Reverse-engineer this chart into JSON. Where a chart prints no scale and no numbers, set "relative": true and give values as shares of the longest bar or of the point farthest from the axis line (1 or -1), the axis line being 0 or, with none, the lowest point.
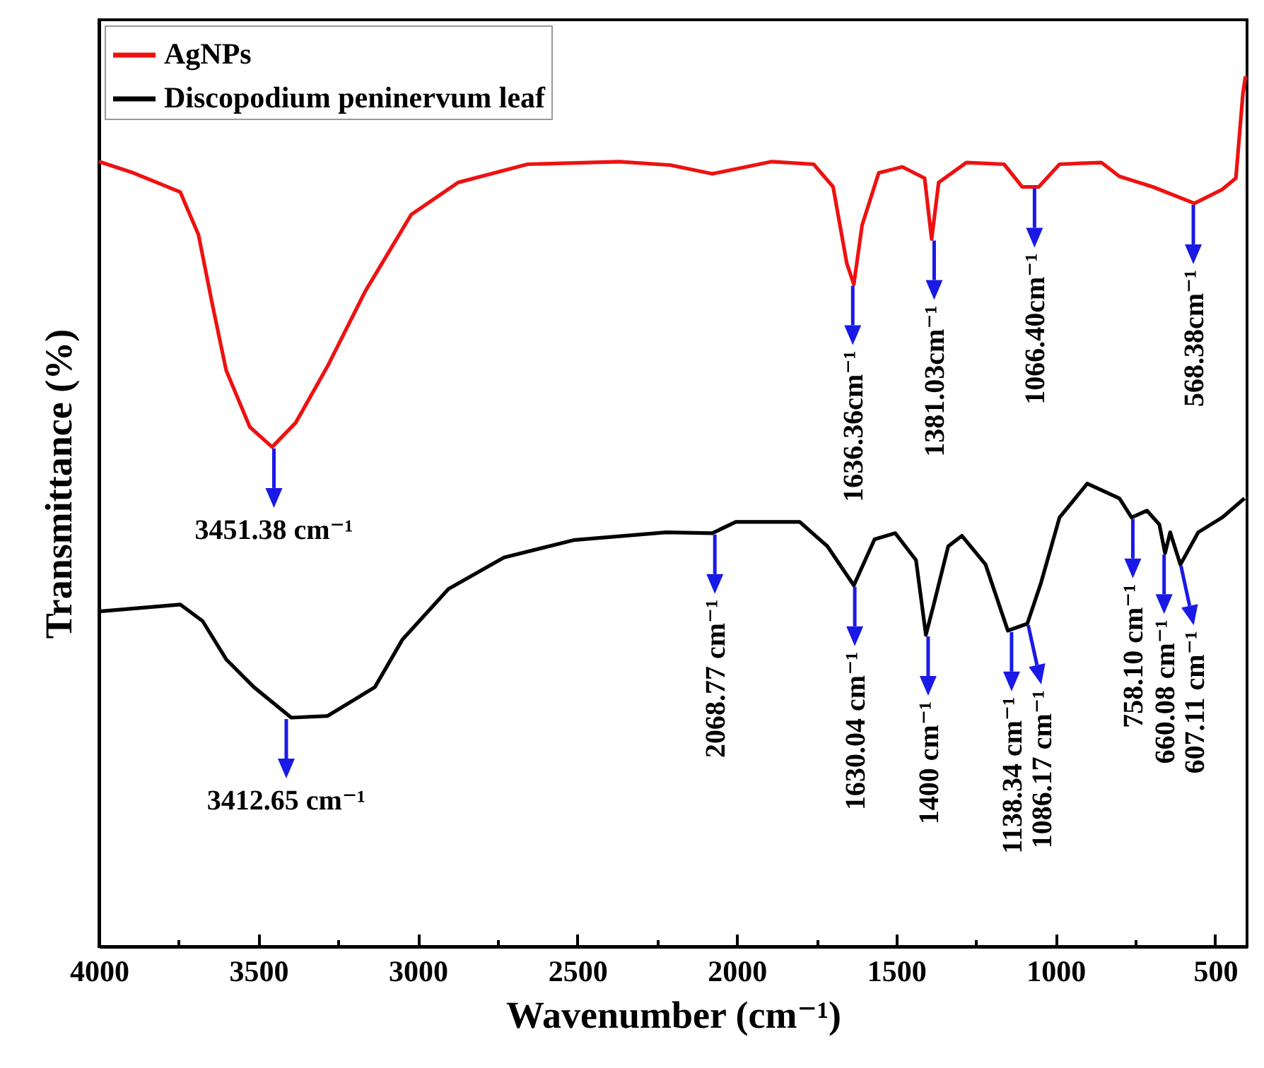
{
  "chart_data": {
    "type": "line",
    "relative": true,
    "xlabel": "Wavenumber (cm⁻¹)",
    "ylabel": "Transmittance (%)",
    "xlim": [
      4000,
      400
    ],
    "xticks": [
      4000,
      {
        "value": 3750,
        "label": null
      },
      3500,
      {
        "value": 3250,
        "label": null
      },
      3000,
      {
        "value": 2750,
        "label": null
      },
      2500,
      {
        "value": 2250,
        "label": null
      },
      2000,
      {
        "value": 1750,
        "label": null
      },
      1500,
      {
        "value": 1250,
        "label": null
      },
      1000,
      {
        "value": 750,
        "label": null
      },
      500
    ],
    "legend": "top left",
    "series": [
      {
        "name": "AgNPs",
        "color": "#ee1111",
        "x": [
          4000,
          3892,
          3745,
          3688,
          3644,
          3601,
          3527,
          3457,
          3383,
          3283,
          3165,
          3021,
          2874,
          2656,
          2369,
          2208,
          2077,
          1890,
          1759,
          1698,
          1655,
          1633,
          1607,
          1555,
          1481,
          1411,
          1389,
          1367,
          1280,
          1162,
          1105,
          1053,
          988,
          857,
          800,
          696,
          565,
          478,
          435,
          413,
          405
        ],
        "values": [
          0.902,
          0.889,
          0.867,
          0.818,
          0.737,
          0.662,
          0.597,
          0.574,
          0.602,
          0.667,
          0.753,
          0.841,
          0.878,
          0.899,
          0.902,
          0.898,
          0.888,
          0.902,
          0.899,
          0.873,
          0.785,
          0.761,
          0.829,
          0.889,
          0.896,
          0.883,
          0.813,
          0.878,
          0.901,
          0.899,
          0.873,
          0.873,
          0.899,
          0.901,
          0.885,
          0.873,
          0.854,
          0.87,
          0.883,
          0.98,
          1.0
        ]
      },
      {
        "name": "Discopodium peninervum leaf",
        "color": "#000000",
        "x": [
          4000,
          3745,
          3675,
          3601,
          3514,
          3397,
          3283,
          3135,
          3048,
          2904,
          2730,
          2512,
          2221,
          2077,
          2003,
          1803,
          1716,
          1633,
          1568,
          1503,
          1438,
          1407,
          1381,
          1337,
          1294,
          1220,
          1150,
          1089,
          1046,
          988,
          901,
          800,
          762,
          714,
          675,
          657,
          641,
          609,
          553,
          478,
          408
        ],
        "values": [
          0.385,
          0.393,
          0.374,
          0.33,
          0.298,
          0.263,
          0.265,
          0.298,
          0.353,
          0.411,
          0.447,
          0.467,
          0.476,
          0.475,
          0.488,
          0.488,
          0.46,
          0.415,
          0.468,
          0.475,
          0.444,
          0.358,
          0.395,
          0.46,
          0.472,
          0.439,
          0.363,
          0.371,
          0.418,
          0.493,
          0.532,
          0.515,
          0.493,
          0.501,
          0.485,
          0.452,
          0.476,
          0.439,
          0.476,
          0.493,
          0.515
        ]
      }
    ],
    "annotations": [
      {
        "text": "3451.38 cm⁻¹",
        "x": 3451.38,
        "y": 0.574
      },
      {
        "text": "1636.36cm⁻¹",
        "x": 1636.36,
        "y": 0.761
      },
      {
        "text": "1381.03cm⁻¹",
        "x": 1381.03,
        "y": 0.813
      },
      {
        "text": "1066.40cm⁻¹",
        "x": 1066.4,
        "y": 0.873
      },
      {
        "text": "568.38cm⁻¹",
        "x": 568.38,
        "y": 0.854
      },
      {
        "text": "3412.65 cm⁻¹",
        "x": 3412.65,
        "y": 0.263
      },
      {
        "text": "2068.77 cm⁻¹",
        "x": 2068.77,
        "y": 0.475
      },
      {
        "text": "1630.04 cm⁻¹",
        "x": 1630.04,
        "y": 0.415
      },
      {
        "text": "1400 cm⁻¹",
        "x": 1400,
        "y": 0.358
      },
      {
        "text": "1138.34 cm⁻¹",
        "x": 1138.34,
        "y": 0.363
      },
      {
        "text": "1086.17 cm⁻¹",
        "x": 1086.17,
        "y": 0.371
      },
      {
        "text": "758.10 cm⁻¹",
        "x": 758.1,
        "y": 0.493
      },
      {
        "text": "660.08 cm⁻¹",
        "x": 660.08,
        "y": 0.452
      },
      {
        "text": "607.11 cm⁻¹",
        "x": 607.11,
        "y": 0.439
      }
    ]
  }
}
